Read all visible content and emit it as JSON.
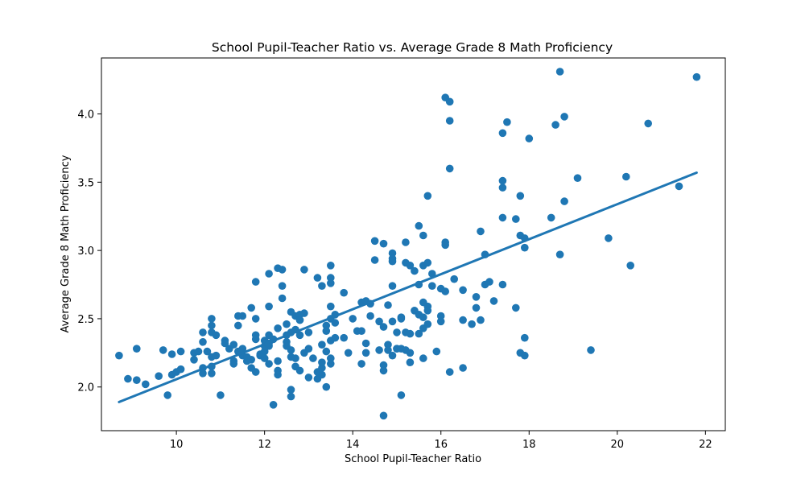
{
  "chart_data": {
    "type": "scatter",
    "title": "School Pupil-Teacher Ratio vs. Average Grade 8 Math Proficiency",
    "xlabel": "School Pupil-Teacher Ratio",
    "ylabel": "Average Grade 8 Math Proficiency",
    "xlim": [
      8.3,
      22.45
    ],
    "ylim": [
      1.68,
      4.41
    ],
    "xticks": [
      10,
      12,
      14,
      16,
      18,
      20,
      22
    ],
    "yticks": [
      2.0,
      2.5,
      3.0,
      3.5,
      4.0
    ],
    "ytick_labels": [
      "2.0",
      "2.5",
      "3.0",
      "3.5",
      "4.0"
    ],
    "grid": false,
    "point_color": "#1f77b4",
    "line_color": "#1f77b4",
    "fit_line": {
      "x": [
        8.7,
        21.8
      ],
      "y": [
        1.89,
        3.57
      ]
    },
    "points": [
      [
        8.7,
        2.23
      ],
      [
        8.9,
        2.06
      ],
      [
        9.1,
        2.05
      ],
      [
        9.1,
        2.28
      ],
      [
        9.3,
        2.02
      ],
      [
        9.6,
        2.08
      ],
      [
        9.7,
        2.27
      ],
      [
        9.8,
        1.94
      ],
      [
        9.9,
        2.09
      ],
      [
        9.9,
        2.24
      ],
      [
        10.0,
        2.11
      ],
      [
        10.1,
        2.13
      ],
      [
        10.1,
        2.26
      ],
      [
        10.4,
        2.2
      ],
      [
        10.4,
        2.25
      ],
      [
        10.5,
        2.26
      ],
      [
        10.6,
        2.1
      ],
      [
        10.6,
        2.14
      ],
      [
        10.6,
        2.4
      ],
      [
        10.6,
        2.33
      ],
      [
        10.7,
        2.26
      ],
      [
        10.8,
        2.4
      ],
      [
        10.8,
        2.15
      ],
      [
        10.8,
        2.45
      ],
      [
        10.8,
        2.5
      ],
      [
        10.8,
        2.22
      ],
      [
        10.8,
        2.1
      ],
      [
        10.9,
        2.38
      ],
      [
        10.9,
        2.23
      ],
      [
        11.0,
        1.94
      ],
      [
        11.1,
        2.34
      ],
      [
        11.1,
        2.32
      ],
      [
        11.2,
        2.28
      ],
      [
        11.3,
        2.19
      ],
      [
        11.3,
        2.17
      ],
      [
        11.3,
        2.31
      ],
      [
        11.4,
        2.26
      ],
      [
        11.4,
        2.45
      ],
      [
        11.4,
        2.52
      ],
      [
        11.5,
        2.23
      ],
      [
        11.5,
        2.52
      ],
      [
        11.5,
        2.28
      ],
      [
        11.6,
        2.19
      ],
      [
        11.6,
        2.22
      ],
      [
        11.7,
        2.2
      ],
      [
        11.7,
        2.58
      ],
      [
        11.7,
        2.14
      ],
      [
        11.8,
        2.77
      ],
      [
        11.8,
        2.5
      ],
      [
        11.8,
        2.38
      ],
      [
        11.8,
        2.11
      ],
      [
        11.8,
        2.35
      ],
      [
        11.9,
        2.23
      ],
      [
        11.9,
        2.24
      ],
      [
        12.0,
        2.3
      ],
      [
        12.0,
        2.34
      ],
      [
        12.0,
        2.26
      ],
      [
        12.0,
        2.21
      ],
      [
        12.1,
        2.3
      ],
      [
        12.1,
        2.17
      ],
      [
        12.1,
        2.59
      ],
      [
        12.1,
        2.38
      ],
      [
        12.1,
        2.83
      ],
      [
        12.1,
        2.32
      ],
      [
        12.2,
        1.87
      ],
      [
        12.2,
        2.35
      ],
      [
        12.3,
        2.87
      ],
      [
        12.3,
        2.12
      ],
      [
        12.3,
        2.19
      ],
      [
        12.3,
        2.09
      ],
      [
        12.3,
        2.43
      ],
      [
        12.4,
        2.86
      ],
      [
        12.4,
        2.74
      ],
      [
        12.4,
        2.65
      ],
      [
        12.5,
        2.3
      ],
      [
        12.5,
        2.38
      ],
      [
        12.5,
        2.46
      ],
      [
        12.5,
        2.33
      ],
      [
        12.6,
        2.27
      ],
      [
        12.6,
        2.4
      ],
      [
        12.6,
        2.55
      ],
      [
        12.6,
        2.22
      ],
      [
        12.6,
        1.93
      ],
      [
        12.6,
        1.98
      ],
      [
        12.7,
        2.15
      ],
      [
        12.7,
        2.42
      ],
      [
        12.7,
        2.52
      ],
      [
        12.7,
        2.21
      ],
      [
        12.8,
        2.38
      ],
      [
        12.8,
        2.12
      ],
      [
        12.8,
        2.49
      ],
      [
        12.8,
        2.53
      ],
      [
        12.8,
        2.49
      ],
      [
        12.9,
        2.86
      ],
      [
        12.9,
        2.54
      ],
      [
        12.9,
        2.25
      ],
      [
        13.0,
        2.07
      ],
      [
        13.0,
        2.28
      ],
      [
        13.0,
        2.4
      ],
      [
        13.1,
        2.21
      ],
      [
        13.2,
        2.8
      ],
      [
        13.2,
        2.06
      ],
      [
        13.2,
        2.11
      ],
      [
        13.3,
        2.09
      ],
      [
        13.3,
        2.14
      ],
      [
        13.3,
        2.31
      ],
      [
        13.3,
        2.74
      ],
      [
        13.3,
        2.18
      ],
      [
        13.4,
        2.26
      ],
      [
        13.4,
        2.0
      ],
      [
        13.4,
        2.45
      ],
      [
        13.4,
        2.41
      ],
      [
        13.5,
        2.5
      ],
      [
        13.5,
        2.21
      ],
      [
        13.5,
        2.34
      ],
      [
        13.5,
        2.17
      ],
      [
        13.5,
        2.89
      ],
      [
        13.5,
        2.8
      ],
      [
        13.5,
        2.76
      ],
      [
        13.5,
        2.59
      ],
      [
        13.6,
        2.53
      ],
      [
        13.6,
        2.36
      ],
      [
        13.6,
        2.47
      ],
      [
        13.8,
        2.36
      ],
      [
        13.8,
        2.69
      ],
      [
        13.9,
        2.25
      ],
      [
        14.0,
        2.5
      ],
      [
        14.1,
        2.41
      ],
      [
        14.2,
        2.41
      ],
      [
        14.2,
        2.17
      ],
      [
        14.2,
        2.62
      ],
      [
        14.3,
        2.32
      ],
      [
        14.3,
        2.25
      ],
      [
        14.3,
        2.63
      ],
      [
        14.4,
        2.61
      ],
      [
        14.4,
        2.52
      ],
      [
        14.5,
        2.93
      ],
      [
        14.5,
        3.07
      ],
      [
        14.6,
        2.27
      ],
      [
        14.6,
        2.48
      ],
      [
        14.7,
        3.05
      ],
      [
        14.7,
        2.44
      ],
      [
        14.7,
        2.16
      ],
      [
        14.7,
        2.12
      ],
      [
        14.7,
        1.79
      ],
      [
        14.8,
        2.31
      ],
      [
        14.8,
        2.27
      ],
      [
        14.8,
        2.6
      ],
      [
        14.9,
        2.23
      ],
      [
        14.9,
        2.98
      ],
      [
        14.9,
        2.94
      ],
      [
        14.9,
        2.92
      ],
      [
        14.9,
        2.74
      ],
      [
        14.9,
        2.48
      ],
      [
        15.0,
        2.28
      ],
      [
        15.0,
        2.28
      ],
      [
        15.0,
        2.4
      ],
      [
        15.1,
        2.5
      ],
      [
        15.1,
        2.28
      ],
      [
        15.1,
        1.94
      ],
      [
        15.1,
        2.51
      ],
      [
        15.2,
        3.06
      ],
      [
        15.2,
        2.91
      ],
      [
        15.2,
        2.4
      ],
      [
        15.2,
        2.27
      ],
      [
        15.3,
        2.25
      ],
      [
        15.3,
        2.39
      ],
      [
        15.3,
        2.18
      ],
      [
        15.3,
        2.89
      ],
      [
        15.4,
        2.56
      ],
      [
        15.4,
        2.85
      ],
      [
        15.5,
        3.18
      ],
      [
        15.5,
        2.75
      ],
      [
        15.5,
        2.53
      ],
      [
        15.5,
        2.39
      ],
      [
        15.6,
        3.11
      ],
      [
        15.6,
        2.89
      ],
      [
        15.6,
        2.62
      ],
      [
        15.6,
        2.51
      ],
      [
        15.6,
        2.43
      ],
      [
        15.6,
        2.21
      ],
      [
        15.7,
        3.4
      ],
      [
        15.7,
        2.91
      ],
      [
        15.7,
        2.59
      ],
      [
        15.7,
        2.46
      ],
      [
        15.7,
        2.56
      ],
      [
        15.8,
        2.83
      ],
      [
        15.8,
        2.74
      ],
      [
        15.9,
        2.26
      ],
      [
        16.0,
        2.52
      ],
      [
        16.0,
        2.48
      ],
      [
        16.0,
        2.72
      ],
      [
        16.1,
        4.12
      ],
      [
        16.1,
        3.06
      ],
      [
        16.1,
        3.04
      ],
      [
        16.1,
        2.7
      ],
      [
        16.2,
        4.09
      ],
      [
        16.2,
        3.95
      ],
      [
        16.2,
        3.6
      ],
      [
        16.2,
        2.11
      ],
      [
        16.3,
        2.79
      ],
      [
        16.5,
        2.71
      ],
      [
        16.5,
        2.49
      ],
      [
        16.5,
        2.14
      ],
      [
        16.7,
        2.46
      ],
      [
        16.8,
        2.66
      ],
      [
        16.8,
        2.58
      ],
      [
        16.9,
        3.14
      ],
      [
        16.9,
        2.49
      ],
      [
        17.0,
        2.97
      ],
      [
        17.0,
        2.75
      ],
      [
        17.1,
        2.77
      ],
      [
        17.2,
        2.63
      ],
      [
        17.4,
        3.86
      ],
      [
        17.4,
        3.51
      ],
      [
        17.4,
        3.46
      ],
      [
        17.4,
        3.24
      ],
      [
        17.4,
        2.75
      ],
      [
        17.5,
        3.94
      ],
      [
        17.7,
        3.23
      ],
      [
        17.7,
        2.58
      ],
      [
        17.8,
        3.4
      ],
      [
        17.8,
        3.11
      ],
      [
        17.8,
        2.25
      ],
      [
        17.9,
        3.09
      ],
      [
        17.9,
        3.02
      ],
      [
        17.9,
        2.36
      ],
      [
        17.9,
        2.23
      ],
      [
        18.0,
        3.82
      ],
      [
        18.5,
        3.24
      ],
      [
        18.6,
        3.92
      ],
      [
        18.7,
        4.31
      ],
      [
        18.7,
        2.97
      ],
      [
        18.8,
        3.98
      ],
      [
        18.8,
        3.36
      ],
      [
        19.1,
        3.53
      ],
      [
        19.4,
        2.27
      ],
      [
        19.8,
        3.09
      ],
      [
        20.2,
        3.54
      ],
      [
        20.3,
        2.89
      ],
      [
        20.7,
        3.93
      ],
      [
        21.4,
        3.47
      ],
      [
        21.8,
        4.27
      ]
    ]
  }
}
